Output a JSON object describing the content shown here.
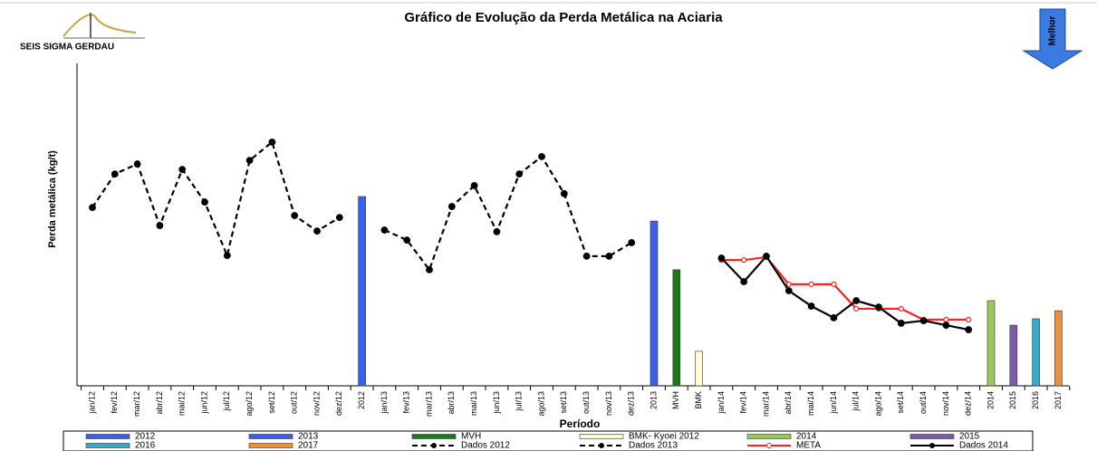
{
  "logo": "SEIS SIGMA GERDAU",
  "chart_data": {
    "type": "combo",
    "title": "Gráfico de Evolução da Perda Metálica na Aciaria",
    "annotation": "Melhor",
    "y_label": "Perda metálica (kg/t)",
    "x_label": "Período",
    "ylim": [
      0,
      100
    ],
    "categories": [
      "jan/12",
      "fev/12",
      "mar/12",
      "abr/12",
      "mai/12",
      "jun/12",
      "jul/12",
      "ago/12",
      "set/12",
      "out/12",
      "nov/12",
      "dez/12",
      "2012",
      "jan/13",
      "fev/13",
      "mar/13",
      "abr/13",
      "mai/13",
      "jun/13",
      "jul/13",
      "ago/13",
      "set/13",
      "out/13",
      "nov/13",
      "dez/13",
      "2013",
      "MVH",
      "BMK",
      "jan/14",
      "fev/14",
      "mar/14",
      "abr/14",
      "mai/14",
      "jun/14",
      "jul/14",
      "ago/14",
      "set/14",
      "out/14",
      "nov/14",
      "dez/14",
      "2014",
      "2015",
      "2016",
      "2017"
    ],
    "series": [
      {
        "name": "2012",
        "kind": "bar",
        "color": "#3b5fe6",
        "values": [
          null,
          null,
          null,
          null,
          null,
          null,
          null,
          null,
          null,
          null,
          null,
          null,
          58.7,
          null,
          null,
          null,
          null,
          null,
          null,
          null,
          null,
          null,
          null,
          null,
          null,
          null,
          null,
          null,
          null,
          null,
          null,
          null,
          null,
          null,
          null,
          null,
          null,
          null,
          null,
          null,
          null,
          null,
          null,
          null
        ]
      },
      {
        "name": "2013",
        "kind": "bar",
        "color": "#3b5fe6",
        "values": [
          null,
          null,
          null,
          null,
          null,
          null,
          null,
          null,
          null,
          null,
          null,
          null,
          null,
          null,
          null,
          null,
          null,
          null,
          null,
          null,
          null,
          null,
          null,
          null,
          null,
          51.1,
          null,
          null,
          null,
          null,
          null,
          null,
          null,
          null,
          null,
          null,
          null,
          null,
          null,
          null,
          null,
          null,
          null,
          null
        ]
      },
      {
        "name": "MVH",
        "kind": "bar",
        "color": "#1b7a1b",
        "values": [
          null,
          null,
          null,
          null,
          null,
          null,
          null,
          null,
          null,
          null,
          null,
          null,
          null,
          null,
          null,
          null,
          null,
          null,
          null,
          null,
          null,
          null,
          null,
          null,
          null,
          null,
          36.0,
          null,
          null,
          null,
          null,
          null,
          null,
          null,
          null,
          null,
          null,
          null,
          null,
          null,
          null,
          null,
          null,
          null
        ]
      },
      {
        "name": "BMK- Kyoei 2012",
        "kind": "bar",
        "color": "#fffbd2",
        "values": [
          null,
          null,
          null,
          null,
          null,
          null,
          null,
          null,
          null,
          null,
          null,
          null,
          null,
          null,
          null,
          null,
          null,
          null,
          null,
          null,
          null,
          null,
          null,
          null,
          null,
          null,
          null,
          10.7,
          null,
          null,
          null,
          null,
          null,
          null,
          null,
          null,
          null,
          null,
          null,
          null,
          null,
          null,
          null,
          null
        ]
      },
      {
        "name": "2014",
        "kind": "bar",
        "color": "#9bc85a",
        "values": [
          null,
          null,
          null,
          null,
          null,
          null,
          null,
          null,
          null,
          null,
          null,
          null,
          null,
          null,
          null,
          null,
          null,
          null,
          null,
          null,
          null,
          null,
          null,
          null,
          null,
          null,
          null,
          null,
          null,
          null,
          null,
          null,
          null,
          null,
          null,
          null,
          null,
          null,
          null,
          null,
          26.4,
          null,
          null,
          null
        ]
      },
      {
        "name": "2015",
        "kind": "bar",
        "color": "#7b5aa8",
        "values": [
          null,
          null,
          null,
          null,
          null,
          null,
          null,
          null,
          null,
          null,
          null,
          null,
          null,
          null,
          null,
          null,
          null,
          null,
          null,
          null,
          null,
          null,
          null,
          null,
          null,
          null,
          null,
          null,
          null,
          null,
          null,
          null,
          null,
          null,
          null,
          null,
          null,
          null,
          null,
          null,
          null,
          18.8,
          null,
          null
        ]
      },
      {
        "name": "2016",
        "kind": "bar",
        "color": "#3aa8c8",
        "values": [
          null,
          null,
          null,
          null,
          null,
          null,
          null,
          null,
          null,
          null,
          null,
          null,
          null,
          null,
          null,
          null,
          null,
          null,
          null,
          null,
          null,
          null,
          null,
          null,
          null,
          null,
          null,
          null,
          null,
          null,
          null,
          null,
          null,
          null,
          null,
          null,
          null,
          null,
          null,
          null,
          null,
          null,
          20.8,
          null
        ]
      },
      {
        "name": "2017",
        "kind": "bar",
        "color": "#f0903a",
        "values": [
          null,
          null,
          null,
          null,
          null,
          null,
          null,
          null,
          null,
          null,
          null,
          null,
          null,
          null,
          null,
          null,
          null,
          null,
          null,
          null,
          null,
          null,
          null,
          null,
          null,
          null,
          null,
          null,
          null,
          null,
          null,
          null,
          null,
          null,
          null,
          null,
          null,
          null,
          null,
          null,
          null,
          null,
          null,
          23.3
        ]
      },
      {
        "name": "Dados 2012",
        "kind": "line",
        "dashed": true,
        "color": "#000000",
        "values": [
          55.3,
          65.7,
          68.8,
          49.7,
          67.1,
          57.0,
          40.4,
          69.9,
          75.6,
          52.8,
          48.0,
          52.2,
          null,
          null,
          null,
          null,
          null,
          null,
          null,
          null,
          null,
          null,
          null,
          null,
          null,
          null,
          null,
          null,
          null,
          null,
          null,
          null,
          null,
          null,
          null,
          null,
          null,
          null,
          null,
          null,
          null,
          null,
          null,
          null
        ]
      },
      {
        "name": "Dados 2013",
        "kind": "line",
        "dashed": true,
        "color": "#000000",
        "values": [
          null,
          null,
          null,
          null,
          null,
          null,
          null,
          null,
          null,
          null,
          null,
          null,
          null,
          48.3,
          45.2,
          36.0,
          55.6,
          62.1,
          47.8,
          65.7,
          71.1,
          59.6,
          40.2,
          40.2,
          44.4,
          null,
          null,
          null,
          null,
          null,
          null,
          null,
          null,
          null,
          null,
          null,
          null,
          null,
          null,
          null,
          null,
          null,
          null,
          null
        ]
      },
      {
        "name": "META",
        "kind": "line",
        "dashed": false,
        "hollow": true,
        "color": "#ff2020",
        "values": [
          null,
          null,
          null,
          null,
          null,
          null,
          null,
          null,
          null,
          null,
          null,
          null,
          null,
          null,
          null,
          null,
          null,
          null,
          null,
          null,
          null,
          null,
          null,
          null,
          null,
          null,
          null,
          null,
          39.0,
          39.0,
          39.9,
          31.5,
          31.5,
          31.5,
          23.9,
          23.9,
          23.9,
          20.5,
          20.5,
          20.5,
          null,
          null,
          null,
          null
        ]
      },
      {
        "name": "Dados 2014",
        "kind": "line",
        "dashed": false,
        "color": "#000000",
        "values": [
          null,
          null,
          null,
          null,
          null,
          null,
          null,
          null,
          null,
          null,
          null,
          null,
          null,
          null,
          null,
          null,
          null,
          null,
          null,
          null,
          null,
          null,
          null,
          null,
          null,
          null,
          null,
          null,
          39.6,
          32.3,
          40.2,
          29.5,
          24.7,
          21.1,
          26.4,
          24.4,
          19.4,
          20.2,
          18.8,
          17.4,
          null,
          null,
          null,
          null
        ]
      }
    ]
  }
}
